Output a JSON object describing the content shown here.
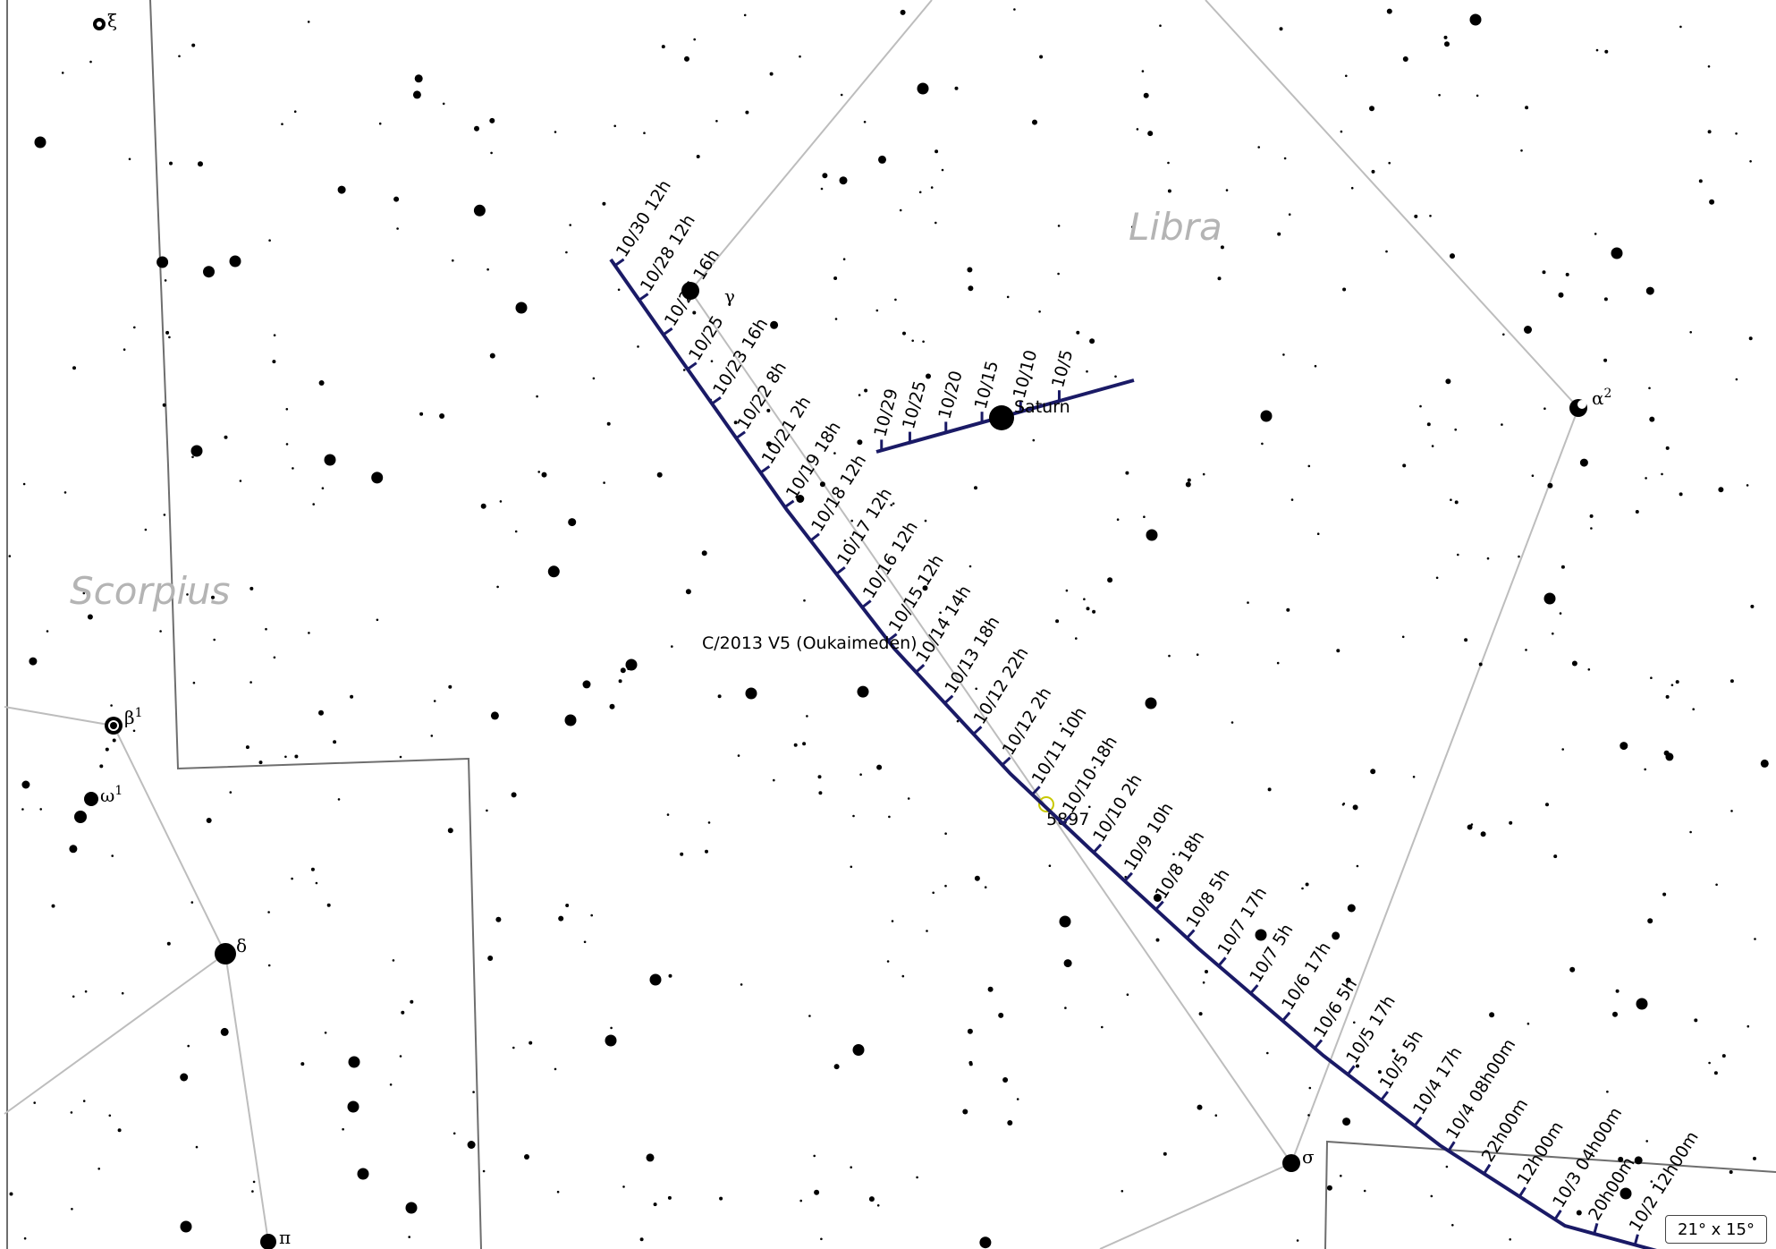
{
  "map": {
    "constellations": [
      {
        "id": "libra",
        "name": "Libra"
      },
      {
        "id": "scorpius",
        "name": "Scorpius"
      }
    ],
    "star_labels": [
      {
        "id": "xi",
        "text": "ξ"
      },
      {
        "id": "beta1",
        "text": "β",
        "sup": "1"
      },
      {
        "id": "omega1",
        "text": "ω",
        "sup": "1"
      },
      {
        "id": "delta",
        "text": "δ"
      },
      {
        "id": "pi",
        "text": "π"
      },
      {
        "id": "sigma",
        "text": "σ"
      },
      {
        "id": "gamma",
        "text": "γ"
      },
      {
        "id": "alpha2",
        "text": "α",
        "sup": "2"
      }
    ],
    "comet": {
      "name": "C/2013 V5 (Oukaimeden)",
      "track_color": "#1a1a66",
      "ticks": [
        "10/30 12h",
        "10/28 12h",
        "10/26 16h",
        "10/25",
        "10/23 16h",
        "10/22 8h",
        "10/21 2h",
        "10/19 18h",
        "10/18 12h",
        "10/17 12h",
        "10/16 12h",
        "10/15 12h",
        "10/14 14h",
        "10/13 18h",
        "10/12 22h",
        "10/12 2h",
        "10/11 10h",
        "10/10 18h",
        "10/10 2h",
        "10/9 10h",
        "10/8 18h",
        "10/8 5h",
        "10/7 17h",
        "10/7 5h",
        "10/6 17h",
        "10/6 5h",
        "10/5 17h",
        "10/5 5h",
        "10/4 17h",
        "10/4 08h00m",
        "22h00m",
        "12h00m",
        "10/3 04h00m",
        "20h00m",
        "10/2 12h00m"
      ]
    },
    "planet": {
      "name": "Saturn",
      "ticks": [
        "10/29",
        "10/25",
        "10/20",
        "10/15",
        "10/10",
        "10/5"
      ]
    },
    "deep_sky": {
      "label": "5897",
      "color": "#c8c800"
    },
    "field_of_view": "21° x 15°"
  }
}
